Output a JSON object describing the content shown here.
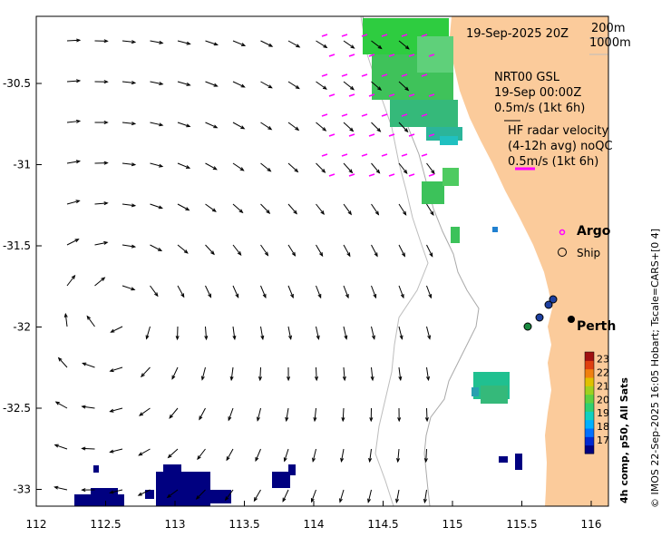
{
  "map": {
    "date_label": "19-Sep-2025 20Z",
    "contour_labels": [
      "200m",
      "1000m"
    ],
    "model_block": [
      "NRT00 GSL",
      "19-Sep 00:00Z",
      "0.5m/s (1kt 6h)"
    ],
    "radar_block": [
      "HF radar velocity",
      "(4-12h avg) noQC",
      "0.5m/s (1kt 6h)"
    ],
    "legend": {
      "argo": "Argo",
      "ship": "Ship"
    },
    "city": "Perth",
    "x_ticks": [
      "112",
      "112.5",
      "113",
      "113.5",
      "114",
      "114.5",
      "115",
      "115.5",
      "116"
    ],
    "y_ticks": [
      "-30.5",
      "-31",
      "-31.5",
      "-32",
      "-32.5",
      "-33"
    ],
    "y_tick_values": [
      -30.5,
      -31,
      -31.5,
      -32,
      -32.5,
      -33
    ],
    "colorbar": {
      "ticks": [
        "23",
        "22",
        "21",
        "20",
        "19",
        "18",
        "17"
      ],
      "min": 16,
      "max": 23.5,
      "units_label": "4h comp, p50, All Sats"
    },
    "credit": "© IMOS 22-Sep-2025 16:05 Hobart; Tscale=CARS+[0 4]",
    "colors": {
      "land": "#fbcb9b",
      "model_arrow": "#000000",
      "radar_arrow": "#ff00ff",
      "cold_sst": "#000080"
    }
  }
}
